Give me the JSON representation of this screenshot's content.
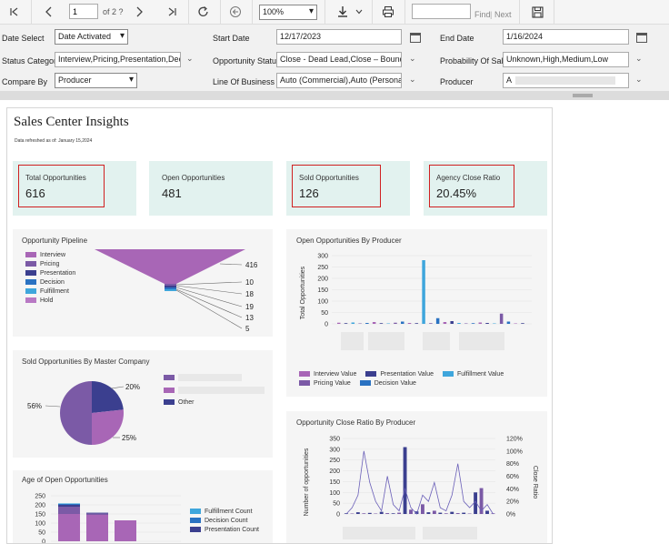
{
  "toolbar": {
    "page_current": "1",
    "page_of": "of 2 ?",
    "zoom": "100%",
    "find_placeholder": "",
    "find_label": "Find",
    "find_sep": "|",
    "next_label": "Next"
  },
  "params": {
    "date_select_label": "Date Select",
    "date_select_value": "Date Activated",
    "start_date_label": "Start Date",
    "start_date_value": "12/17/2023",
    "end_date_label": "End Date",
    "end_date_value": "1/16/2024",
    "status_category_label": "Status Category",
    "status_category_value": "Interview,Pricing,Presentation,Decisic",
    "opportunity_status_label": "Opportunity Status",
    "opportunity_status_value": "Close - Dead Lead,Close – Bound,De",
    "probability_label": "Probability Of Sale",
    "probability_value": "Unknown,High,Medium,Low",
    "compare_by_label": "Compare By",
    "compare_by_value": "Producer",
    "line_of_business_label": "Line Of Business",
    "line_of_business_value": "Auto (Commercial),Auto (Personal),B",
    "producer_label": "Producer",
    "producer_value": "A"
  },
  "report": {
    "title": "Sales Center Insights",
    "refreshed": "Data refreshed as of: January 15,2024",
    "kpis": [
      {
        "label": "Total Opportunities",
        "value": "616",
        "highlighted": true
      },
      {
        "label": "Open Opportunities",
        "value": "481",
        "highlighted": false
      },
      {
        "label": "Sold Opportunities",
        "value": "126",
        "highlighted": true
      },
      {
        "label": "Agency Close Ratio",
        "value": "20.45%",
        "highlighted": true
      }
    ]
  },
  "colors": {
    "interview": "#a866b6",
    "pricing": "#7b5aa6",
    "presentation": "#3b3f8f",
    "decision": "#2a72c2",
    "fulfillment": "#3fa6dc",
    "hold": "#b879c4",
    "kpi_bg": "#e2f2ef",
    "highlight": "#d02020"
  },
  "chart_data": [
    {
      "type": "funnel",
      "title": "Opportunity Pipeline",
      "legend": [
        "Interview",
        "Pricing",
        "Presentation",
        "Decision",
        "Fulfillment",
        "Hold"
      ],
      "values": [
        416,
        10,
        18,
        19,
        13,
        5
      ]
    },
    {
      "type": "bar",
      "title": "Open Opportunities By Producer",
      "ylabel": "Total Opportunities",
      "ylim": [
        0,
        300
      ],
      "yticks": [
        0,
        50,
        100,
        150,
        200,
        250,
        300
      ],
      "series_names": [
        "Interview Value",
        "Presentation Value",
        "Fulfillment Value",
        "Pricing Value",
        "Decision Value"
      ],
      "values": [
        5,
        3,
        6,
        2,
        4,
        8,
        3,
        2,
        5,
        10,
        4,
        3,
        280,
        3,
        25,
        8,
        12,
        4,
        2,
        3,
        6,
        4,
        2,
        45,
        10,
        2,
        3
      ]
    },
    {
      "type": "pie",
      "title": "Sold Opportunities By Master Company",
      "slices": [
        {
          "label": "56%",
          "value": 56
        },
        {
          "label": "20%",
          "value": 20
        },
        {
          "label": "25%",
          "value": 25
        }
      ],
      "legend": [
        "",
        "",
        "Other"
      ]
    },
    {
      "type": "bar",
      "title": "Opportunity Close Ratio By Producer",
      "ylabel": "Number of opportunities",
      "y2label": "Close Ratio",
      "ylim": [
        0,
        350
      ],
      "yticks": [
        0,
        50,
        100,
        150,
        200,
        250,
        300,
        350
      ],
      "y2ticks": [
        "0%",
        "20%",
        "40%",
        "60%",
        "80%",
        "100%",
        "120%"
      ],
      "bars": [
        3,
        2,
        8,
        3,
        5,
        2,
        10,
        4,
        3,
        6,
        310,
        20,
        12,
        45,
        8,
        15,
        6,
        3,
        10,
        4,
        6,
        2,
        100,
        120,
        15,
        3
      ],
      "ratio": [
        0,
        10,
        30,
        100,
        50,
        20,
        5,
        60,
        15,
        5,
        40,
        10,
        0,
        30,
        20,
        50,
        10,
        5,
        30,
        80,
        20,
        10,
        20,
        5,
        15,
        0
      ]
    },
    {
      "type": "bar",
      "title": "Age of Open Opportunities",
      "ylim": [
        0,
        250
      ],
      "yticks": [
        0,
        50,
        100,
        150,
        200,
        250
      ],
      "legend": [
        "Fulfillment Count",
        "Decision Count",
        "Presentation Count"
      ],
      "stacks": [
        {
          "interview": 150,
          "pricing": 40,
          "presentation": 10,
          "decision": 5,
          "fulfillment": 3
        },
        {
          "interview": 145,
          "pricing": 8,
          "presentation": 4
        },
        {
          "interview": 115
        }
      ]
    }
  ]
}
